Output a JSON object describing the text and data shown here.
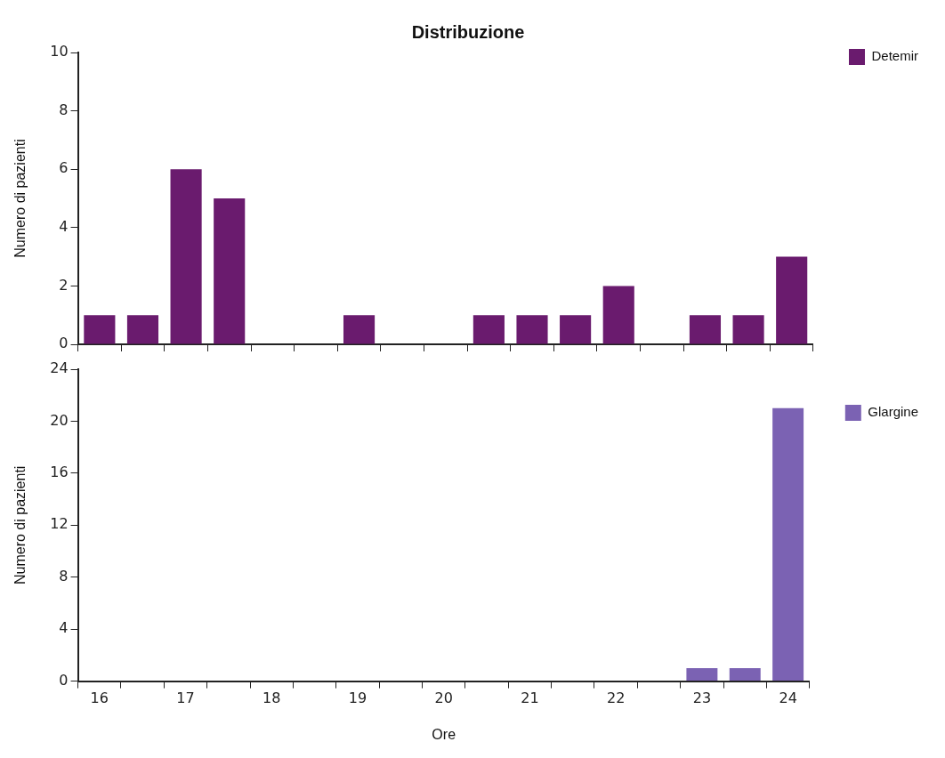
{
  "chart_data": [
    {
      "type": "bar",
      "title": "Distribuzione",
      "ylabel": "Numero di pazienti",
      "categories": [
        "16",
        null,
        "17",
        null,
        "18",
        null,
        "19",
        null,
        "20",
        null,
        "21",
        null,
        "22",
        null,
        "23",
        null,
        "24"
      ],
      "series": [
        {
          "name": "Detemir",
          "color": "#6a1b6e",
          "values": [
            1,
            1,
            6,
            5,
            0,
            0,
            1,
            0,
            0,
            1,
            1,
            1,
            2,
            0,
            1,
            1,
            3
          ]
        }
      ],
      "ylim": [
        0,
        10
      ],
      "yticks": [
        0,
        2,
        4,
        6,
        8,
        10
      ],
      "legend": "right",
      "tick_labels": "y"
    },
    {
      "type": "bar",
      "ylabel": "Numero di pazienti",
      "xlabel": "Ore",
      "categories": [
        "16",
        null,
        "17",
        null,
        "18",
        null,
        "19",
        null,
        "20",
        null,
        "21",
        null,
        "22",
        null,
        "23",
        null,
        "24"
      ],
      "series": [
        {
          "name": "Glargine",
          "color": "#7b62b3",
          "values": [
            0,
            0,
            0,
            0,
            0,
            0,
            0,
            0,
            0,
            0,
            0,
            0,
            0,
            0,
            1,
            1,
            21
          ]
        }
      ],
      "ylim": [
        0,
        24
      ],
      "yticks": [
        0,
        4,
        8,
        12,
        16,
        20,
        24
      ],
      "legend": "right"
    }
  ]
}
